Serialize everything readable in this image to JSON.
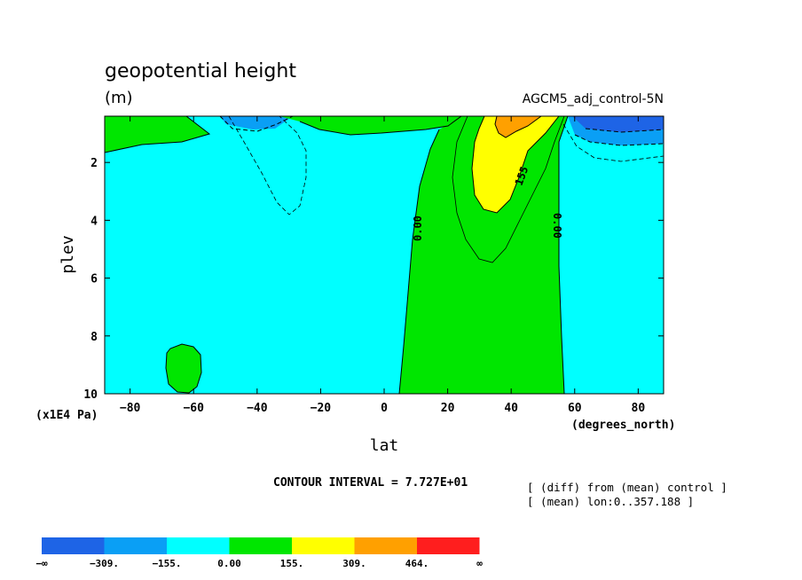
{
  "chart_data": {
    "type": "contour",
    "title": "geopotential height",
    "units": "(m)",
    "experiment": "AGCM5_adj_control-5N",
    "xlabel": "lat",
    "xunits": "(degrees_north)",
    "ylabel": "plev",
    "yunits": "(x1E4 Pa)",
    "xlim": [
      -88,
      88
    ],
    "ylim": [
      10,
      0.4
    ],
    "xticks": [
      "-80",
      "-60",
      "-40",
      "-20",
      "0",
      "20",
      "40",
      "60",
      "80"
    ],
    "yticks": [
      "2",
      "4",
      "6",
      "8",
      "10"
    ],
    "contour_interval": "CONTOUR INTERVAL = 7.727E+01",
    "contour_labels": [
      "0.00",
      "155",
      "0.00"
    ],
    "levels": [
      "-∞",
      "-309.",
      "-155.",
      "0.00",
      "155.",
      "309.",
      "464.",
      "∞"
    ],
    "colors": [
      "#1e64e6",
      "#0a9ff5",
      "#00ffff",
      "#00e600",
      "#ffff00",
      "#ffa000",
      "#ff1e1e"
    ],
    "notes": [
      "[ (diff) from (mean) control ]",
      "[ (mean) lon:0..357.188 ]"
    ]
  }
}
